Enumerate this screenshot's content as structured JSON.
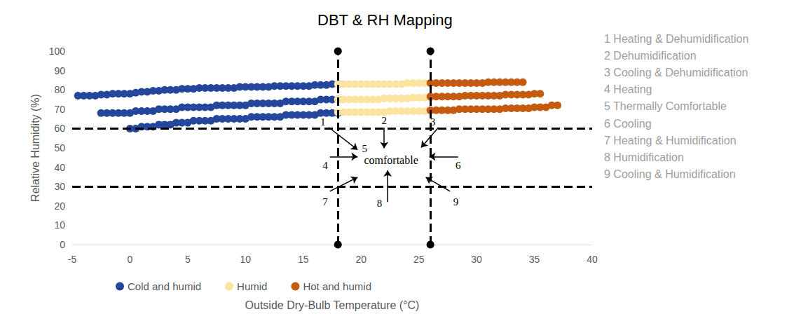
{
  "chart_data": {
    "type": "scatter",
    "title": "DBT & RH Mapping",
    "x_label": "Outside Dry-Bulb Temperature (°C)",
    "y_label": "Relative Humidity (%)",
    "xlim": [
      -5,
      40
    ],
    "xticks": [
      -5,
      0,
      5,
      10,
      15,
      20,
      25,
      30,
      35,
      40
    ],
    "ylim": [
      0,
      100
    ],
    "yticks": [
      0,
      10,
      20,
      30,
      40,
      50,
      60,
      70,
      80,
      90,
      100
    ],
    "grid": false,
    "legend": "bottom",
    "marker": "circle",
    "thresholds": {
      "x": [
        18,
        26
      ],
      "y": [
        30,
        60
      ]
    },
    "annotations": {
      "center": "comfortable",
      "markers": [
        "1",
        "2",
        "3",
        "4",
        "5",
        "6",
        "7",
        "8",
        "9"
      ]
    },
    "zone_key": [
      "1 Heating & Dehumidification",
      "2 Dehumidification",
      "3 Cooling & Dehumidification",
      "4 Heating",
      "5 Thermally Comfortable",
      "6 Cooling",
      "7 Heating & Humidification",
      "8 Humidification",
      "9 Cooling & Humidification"
    ],
    "series": [
      {
        "name": "Cold and humid",
        "color": "#24479b",
        "x": [
          -4.5,
          -4,
          -3.5,
          -3,
          -2.5,
          -2,
          -1.5,
          -1,
          -0.5,
          0,
          0.5,
          1,
          1.5,
          2,
          2.5,
          3,
          3.5,
          4,
          4.5,
          5,
          5.5,
          6,
          6.5,
          7,
          7.5,
          8,
          8.5,
          9,
          9.5,
          10,
          10.5,
          11,
          11.5,
          12,
          12.5,
          13,
          13.5,
          14,
          14.5,
          15,
          15.5,
          16,
          16.5,
          17,
          17.5,
          18,
          -2.5,
          -2,
          -1.5,
          -1,
          -0.5,
          0,
          0.5,
          1,
          1.5,
          2,
          2.5,
          3,
          3.5,
          4,
          4.5,
          5,
          5.5,
          6,
          6.5,
          7,
          7.5,
          8,
          8.5,
          9,
          9.5,
          10,
          10.5,
          11,
          11.5,
          12,
          12.5,
          13,
          13.5,
          14,
          14.5,
          15,
          15.5,
          16,
          16.5,
          17,
          17.5,
          18,
          0,
          0.5,
          1,
          1.5,
          2,
          2.5,
          3,
          3.5,
          4,
          4.5,
          5,
          5.5,
          6,
          6.5,
          7,
          7.5,
          8,
          8.5,
          9,
          9.5,
          10,
          10.5,
          11,
          11.5,
          12,
          12.5,
          13,
          13.5,
          14,
          14.5,
          15,
          15.5,
          16,
          16.5,
          17,
          17.5,
          18
        ],
        "values": [
          77,
          77,
          77,
          77,
          77.5,
          77.5,
          78,
          78,
          78,
          78,
          78.5,
          79,
          79,
          79.5,
          79.5,
          80,
          80,
          80,
          80.5,
          80.5,
          80.5,
          81,
          81,
          81,
          81,
          81,
          81,
          81,
          81.5,
          81.5,
          81.5,
          81.5,
          81.5,
          81.5,
          82,
          82,
          82,
          82,
          82,
          82,
          82,
          82.5,
          82.5,
          82.5,
          83,
          83,
          68,
          68,
          68,
          68,
          68,
          68,
          69,
          69,
          69,
          69,
          70,
          70,
          70,
          70,
          71,
          71,
          71,
          71,
          71,
          71,
          72,
          72,
          72,
          72,
          72,
          72,
          73,
          73,
          73,
          73,
          73,
          73,
          74,
          74,
          74,
          74,
          74,
          74,
          75,
          75,
          75,
          75,
          60,
          60,
          61,
          61,
          61,
          62,
          62,
          62,
          63,
          63,
          63,
          64,
          64,
          64,
          64,
          65,
          65,
          65,
          65,
          65,
          65,
          66,
          66,
          66,
          66,
          66,
          66,
          67,
          67,
          67,
          67,
          67,
          67,
          68,
          68,
          68,
          68
        ]
      },
      {
        "name": "Humid",
        "color": "#fde3a0",
        "x": [
          18,
          18.5,
          19,
          19.5,
          20,
          20.5,
          21,
          21.5,
          22,
          22.5,
          23,
          23.5,
          24,
          24.5,
          25,
          25.5,
          26,
          18,
          18.5,
          19,
          19.5,
          20,
          20.5,
          21,
          21.5,
          22,
          22.5,
          23,
          23.5,
          24,
          24.5,
          25,
          25.5,
          26,
          18,
          18.5,
          19,
          19.5,
          20,
          20.5,
          21,
          21.5,
          22,
          22.5,
          23,
          23.5,
          24,
          24.5,
          25,
          25.5,
          26
        ],
        "values": [
          83,
          83,
          83,
          83,
          83,
          83,
          83,
          83,
          83,
          83,
          83,
          83,
          83.5,
          83.5,
          83.5,
          83.5,
          83.5,
          75,
          75,
          75,
          75,
          75,
          75,
          75,
          75,
          75.5,
          75.5,
          75.5,
          75.5,
          75.5,
          76,
          76,
          76,
          76,
          68.5,
          68.5,
          68.5,
          68.5,
          68.5,
          68.5,
          68.5,
          68.5,
          68.5,
          69,
          69,
          69,
          69,
          69,
          69,
          69,
          69
        ]
      },
      {
        "name": "Hot and humid",
        "color": "#c55a11",
        "x": [
          26,
          26.5,
          27,
          27.5,
          28,
          28.5,
          29,
          29.5,
          30,
          30.5,
          31,
          31.5,
          32,
          32.5,
          33,
          33.5,
          34,
          26,
          26.5,
          27,
          27.5,
          28,
          28.5,
          29,
          29.5,
          30,
          30.5,
          31,
          31.5,
          32,
          32.5,
          33,
          33.5,
          34,
          34.5,
          35,
          35.5,
          26,
          26.5,
          27,
          27.5,
          28,
          28.5,
          29,
          29.5,
          30,
          30.5,
          31,
          31.5,
          32,
          32.5,
          33,
          33.5,
          34,
          34.5,
          35,
          35.5,
          36,
          36.5,
          37
        ],
        "values": [
          83.5,
          83.5,
          83.5,
          83.5,
          83.5,
          83.5,
          83.5,
          83.5,
          83.5,
          83.5,
          84,
          84,
          84,
          84,
          84,
          84,
          84,
          76.5,
          76.5,
          76.5,
          76.5,
          76.5,
          76.5,
          77,
          77,
          77,
          77,
          77,
          77,
          77,
          77.5,
          77.5,
          77.5,
          77.5,
          77.5,
          78,
          78,
          69.5,
          69.5,
          69.5,
          69.5,
          69.5,
          70,
          70,
          70,
          70,
          70,
          70,
          70,
          70,
          70.5,
          70.5,
          70.5,
          70.5,
          70.5,
          71,
          71,
          71,
          72,
          72
        ]
      }
    ]
  }
}
